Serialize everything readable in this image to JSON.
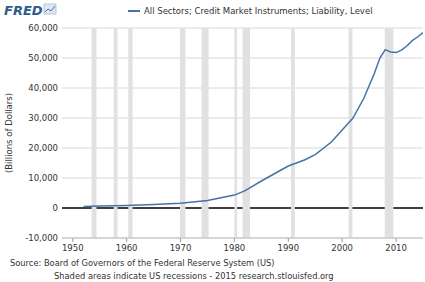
{
  "chart_data": {
    "type": "line",
    "logo": "FRED",
    "y_label": "(Billions of Dollars)",
    "source": "Source: Board of Governors of the Federal Reserve System (US)",
    "note": "Shaded areas indicate US recessions - 2015 research.stlouisfed.org",
    "x": [
      1952,
      1955,
      1960,
      1965,
      1970,
      1975,
      1980,
      1982,
      1985,
      1988,
      1990,
      1993,
      1995,
      1998,
      2000,
      2002,
      2004,
      2006,
      2007,
      2008,
      2009,
      2010,
      2011,
      2012,
      2013,
      2014,
      2015
    ],
    "series": [
      {
        "name": "All Sectors; Credit Market Instruments; Liability, Level",
        "color": "#4572a7",
        "values": [
          500,
          650,
          850,
          1150,
          1550,
          2500,
          4300,
          5800,
          9000,
          12000,
          14000,
          16000,
          17800,
          22000,
          26000,
          30000,
          36500,
          45000,
          50000,
          52800,
          52000,
          51800,
          52600,
          54000,
          55800,
          57000,
          58500
        ]
      }
    ],
    "recessions": [
      [
        1953.5,
        1954.4
      ],
      [
        1957.6,
        1958.3
      ],
      [
        1960.3,
        1961.1
      ],
      [
        1969.9,
        1970.9
      ],
      [
        1973.9,
        1975.2
      ],
      [
        1980.0,
        1980.5
      ],
      [
        1981.5,
        1982.9
      ],
      [
        1990.5,
        1991.2
      ],
      [
        2001.2,
        2001.9
      ],
      [
        2007.9,
        2009.5
      ]
    ],
    "xlim": [
      1948,
      2015
    ],
    "ylim": [
      -10000,
      60000
    ],
    "xticks": [
      1950,
      1960,
      1970,
      1980,
      1990,
      2000,
      2010
    ],
    "yticks": [
      {
        "value": -10000,
        "label": "-10,000"
      },
      0,
      {
        "value": 10000,
        "label": "10,000"
      },
      {
        "value": 20000,
        "label": "20,000"
      },
      {
        "value": 30000,
        "label": "30,000"
      },
      {
        "value": 40000,
        "label": "40,000"
      },
      {
        "value": 50000,
        "label": "50,000"
      },
      {
        "value": 60000,
        "label": "60,000"
      }
    ],
    "grid": true
  }
}
